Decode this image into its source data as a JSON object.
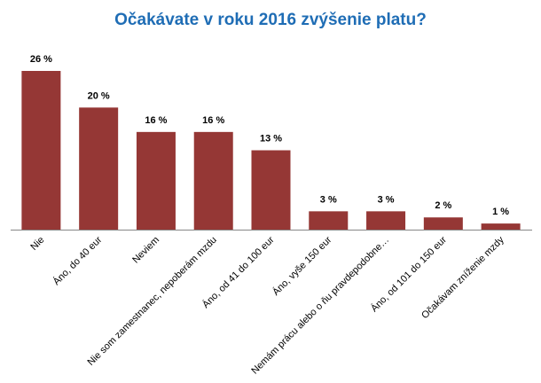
{
  "chart_data": {
    "type": "bar",
    "title": "Očakávate v roku 2016 zvýšenie platu?",
    "categories": [
      "Nie",
      "Áno, do 40 eur",
      "Neviem",
      "Nie som zamestnanec, nepoberám mzdu",
      "Áno, od 41 do 100 eur",
      "Áno, vyše 150 eur",
      "Nemám prácu alebo o ňu pravdepodobne…",
      "Áno, od 101 do 150 eur",
      "Očakávam zníženie mzdy"
    ],
    "values": [
      26,
      20,
      16,
      16,
      13,
      3,
      3,
      2,
      1
    ],
    "value_labels": [
      "26 %",
      "20 %",
      "16 %",
      "16 %",
      "13 %",
      "3 %",
      "3 %",
      "2 %",
      "1 %"
    ],
    "color": "#953735"
  }
}
